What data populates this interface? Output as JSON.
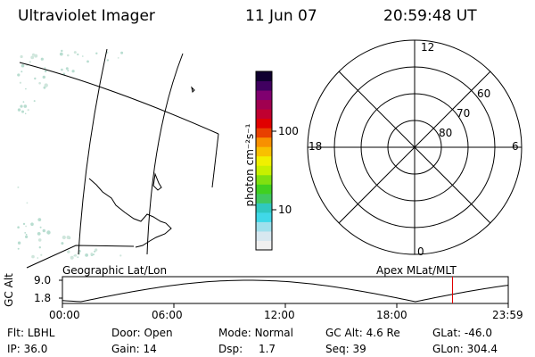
{
  "header": {
    "title": "Ultraviolet Imager",
    "date": "11 Jun 07",
    "time": "20:59:48 UT"
  },
  "colorbar": {
    "unit_label": "photon cm⁻²s⁻¹",
    "tick_labels": [
      "100",
      "10"
    ],
    "colors": [
      "#f0f0f0",
      "#d8e8f0",
      "#a0e0ec",
      "#40d8e8",
      "#30c8c0",
      "#40c860",
      "#40d020",
      "#80e010",
      "#c8f000",
      "#f0f000",
      "#f8c000",
      "#f89000",
      "#e84000",
      "#e00000",
      "#c00030",
      "#a00050",
      "#800070",
      "#400060",
      "#100030"
    ]
  },
  "polar_plot": {
    "mlt_labels": {
      "top": "12",
      "left": "18",
      "right": "6",
      "bottom": "0"
    },
    "lat_labels": [
      "60",
      "70",
      "80"
    ]
  },
  "orbit_plot": {
    "left_title": "Geographic Lat/Lon",
    "right_title": "Apex MLat/MLT",
    "y_label": "GC Alt",
    "y_ticks": [
      "9.0",
      "1.8"
    ],
    "x_ticks": [
      "00:00",
      "06:00",
      "12:00",
      "18:00",
      "23:59"
    ],
    "current_marker_time_hours": 21.0
  },
  "footer": {
    "row1": [
      {
        "label": "Flt:",
        "value": "LBHL"
      },
      {
        "label": "Door:",
        "value": "Open"
      },
      {
        "label": "Mode:",
        "value": "Normal"
      },
      {
        "label": "GC Alt:",
        "value": "4.6 Re"
      },
      {
        "label": "GLat:",
        "value": "-46.0"
      }
    ],
    "row2": [
      {
        "label": "IP:",
        "value": "36.0"
      },
      {
        "label": "Gain:",
        "value": "14"
      },
      {
        "label": "Dsp:",
        "value": "1.7"
      },
      {
        "label": "Seq:",
        "value": "39"
      },
      {
        "label": "GLon:",
        "value": "304.4"
      }
    ]
  }
}
